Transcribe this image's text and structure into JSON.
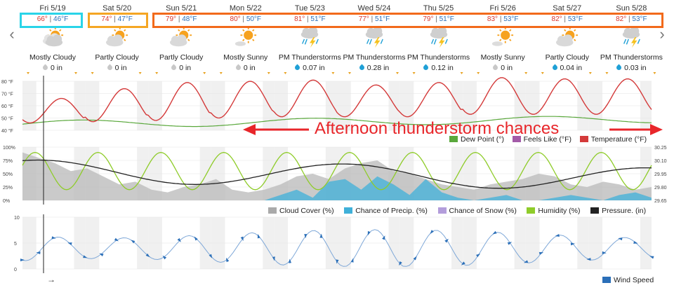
{
  "nav": {
    "prev": "‹",
    "next": "›"
  },
  "days": [
    {
      "date": "Fri 5/19",
      "hi": "66°",
      "lo": "46°F",
      "condition": "Mostly Cloudy",
      "precip": "0 in",
      "icon": "mostly-cloudy-icon"
    },
    {
      "date": "Sat 5/20",
      "hi": "74°",
      "lo": "47°F",
      "condition": "Partly Cloudy",
      "precip": "0 in",
      "icon": "partly-cloudy-icon"
    },
    {
      "date": "Sun 5/21",
      "hi": "79°",
      "lo": "48°F",
      "condition": "Partly Cloudy",
      "precip": "0 in",
      "icon": "partly-cloudy-icon"
    },
    {
      "date": "Mon 5/22",
      "hi": "80°",
      "lo": "50°F",
      "condition": "Mostly Sunny",
      "precip": "0 in",
      "icon": "mostly-sunny-icon"
    },
    {
      "date": "Tue 5/23",
      "hi": "81°",
      "lo": "51°F",
      "condition": "PM Thunderstorms",
      "precip": "0.07 in",
      "icon": "thunderstorm-icon"
    },
    {
      "date": "Wed 5/24",
      "hi": "77°",
      "lo": "51°F",
      "condition": "PM Thunderstorms",
      "precip": "0.28 in",
      "icon": "thunderstorm-icon"
    },
    {
      "date": "Thu 5/25",
      "hi": "79°",
      "lo": "51°F",
      "condition": "PM Thunderstorms",
      "precip": "0.12 in",
      "icon": "thunderstorm-icon"
    },
    {
      "date": "Fri 5/26",
      "hi": "83°",
      "lo": "53°F",
      "condition": "Mostly Sunny",
      "precip": "0 in",
      "icon": "mostly-sunny-icon"
    },
    {
      "date": "Sat 5/27",
      "hi": "82°",
      "lo": "53°F",
      "condition": "Partly Cloudy",
      "precip": "0.04 in",
      "icon": "partly-cloudy-icon"
    },
    {
      "date": "Sun 5/28",
      "hi": "82°",
      "lo": "53°F",
      "condition": "PM Thunderstorms",
      "precip": "0.03 in",
      "icon": "thunderstorm-icon"
    }
  ],
  "highlight_colors": {
    "today_box": "#29d4e8",
    "weekend_box": "#f5a623",
    "week_box": "#f26a1b"
  },
  "annotation": "Afternoon thunderstorm chances",
  "colors": {
    "temperature": "#d43a3a",
    "dew_point": "#5aa83c",
    "feels_like": "#a35ba8",
    "cloud_cover": "#aaaaaa",
    "precip_chance": "#3fb0d9",
    "snow_chance": "#b39ddb",
    "humidity": "#8fcc2a",
    "pressure": "#222222",
    "wind_speed": "#2b6fb8",
    "arrow": "#e8262a"
  },
  "temp_chart": {
    "y_ticks": [
      "80 °F",
      "70 °F",
      "60 °F",
      "50 °F",
      "40 °F"
    ],
    "legend": [
      "Dew Point (°)",
      "Feels Like (°F)",
      "Temperature (°F)"
    ]
  },
  "mid_chart": {
    "y_ticks": [
      "100%",
      "75%",
      "50%",
      "25%",
      "0%"
    ],
    "y_ticks_right": [
      "30.25",
      "30.10",
      "29.95",
      "29.80",
      "29.65"
    ],
    "legend": [
      "Cloud Cover (%)",
      "Chance of Precip. (%)",
      "Chance of Snow (%)",
      "Humidity (%)",
      "Pressure. (in)"
    ]
  },
  "wind_chart": {
    "y_ticks": [
      "10",
      "5",
      "0"
    ],
    "legend": "Wind Speed"
  },
  "time_arrow": "→"
}
